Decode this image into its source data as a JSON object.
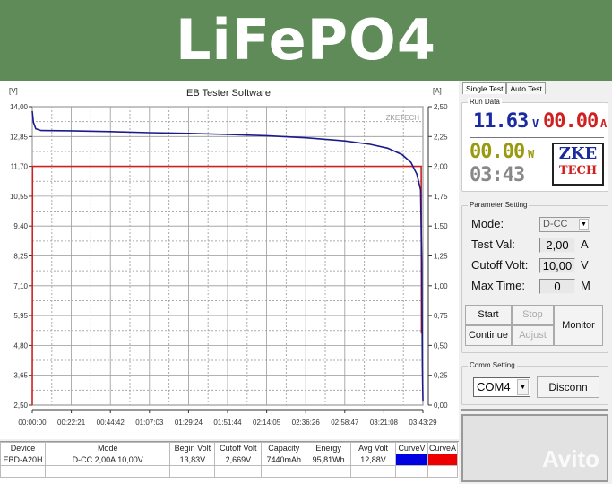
{
  "banner": {
    "title": "LiFePO4"
  },
  "chart_data": {
    "type": "line",
    "title": "EB Tester Software",
    "ylabel_left": "[V]",
    "ylabel_right": "[A]",
    "watermark": "ZKETECH",
    "x_unit": "seconds",
    "xlim": [
      0,
      13409
    ],
    "x_ticks": [
      "00:00:00",
      "00:22:21",
      "00:44:42",
      "01:07:03",
      "01:29:24",
      "01:51:44",
      "02:14:05",
      "02:36:26",
      "02:58:47",
      "03:21:08",
      "03:43:29"
    ],
    "y_left_ticks": [
      "14,00",
      "12,85",
      "11,70",
      "10,55",
      "9,40",
      "8,25",
      "7,10",
      "5,95",
      "4,80",
      "3,65",
      "2,50"
    ],
    "y_right_ticks": [
      "2,50",
      "2,25",
      "2,00",
      "1,75",
      "1,50",
      "1,25",
      "1,00",
      "0,75",
      "0,50",
      "0,25",
      "0,00"
    ],
    "ylim_left": [
      2.5,
      14.0
    ],
    "ylim_right": [
      0,
      2.5
    ],
    "grid": true,
    "series": [
      {
        "axis": "left",
        "color": "#1a1a8c",
        "points": [
          [
            0,
            13.83
          ],
          [
            40,
            13.4
          ],
          [
            120,
            13.15
          ],
          [
            300,
            13.08
          ],
          [
            1341,
            13.07
          ],
          [
            2682,
            13.04
          ],
          [
            4023,
            13.0
          ],
          [
            5364,
            12.97
          ],
          [
            6705,
            12.93
          ],
          [
            8046,
            12.88
          ],
          [
            9387,
            12.8
          ],
          [
            10728,
            12.68
          ],
          [
            11600,
            12.55
          ],
          [
            12200,
            12.4
          ],
          [
            12700,
            12.15
          ],
          [
            13000,
            11.85
          ],
          [
            13200,
            11.4
          ],
          [
            13330,
            10.8
          ],
          [
            13370,
            8.0
          ],
          [
            13390,
            4.0
          ],
          [
            13409,
            2.67
          ]
        ]
      },
      {
        "axis": "right",
        "color": "#cc2222",
        "points": [
          [
            0,
            0
          ],
          [
            8,
            2.0
          ],
          [
            13350,
            2.0
          ],
          [
            13360,
            0.6
          ]
        ]
      }
    ]
  },
  "table": {
    "headers": [
      "Device",
      "Mode",
      "Begin Volt",
      "Cutoff Volt",
      "Capacity",
      "Energy",
      "Avg Volt",
      "CurveV",
      "CurveA"
    ],
    "row": [
      "EBD-A20H",
      "D-CC 2,00A 10,00V",
      "13,83V",
      "2,669V",
      "7440mAh",
      "95,81Wh",
      "12,88V"
    ],
    "curve_colors": [
      "#0000e0",
      "#ee0000"
    ]
  },
  "panel": {
    "tabs": [
      "Single Test",
      "Auto Test"
    ],
    "run_data_label": "Run Data",
    "voltage": "11.63",
    "voltage_unit": "V",
    "current": "00.00",
    "current_unit": "A",
    "power": "00.00",
    "power_unit": "W",
    "time": "03:43",
    "logo_top": "ZKE",
    "logo_bottom": "TECH",
    "param_label": "Parameter Setting",
    "mode_label": "Mode:",
    "mode_value": "D-CC",
    "test_val_label": "Test Val:",
    "test_val": "2,00",
    "test_val_unit": "A",
    "cutoff_label": "Cutoff Volt:",
    "cutoff_val": "10,00",
    "cutoff_unit": "V",
    "max_time_label": "Max Time:",
    "max_time": "0",
    "max_time_unit": "M",
    "start": "Start",
    "stop": "Stop",
    "continue": "Continue",
    "adjust": "Adjust",
    "monitor": "Monitor",
    "comm_label": "Comm Setting",
    "port": "COM4",
    "disconn": "Disconn",
    "watermark": "Avito"
  }
}
